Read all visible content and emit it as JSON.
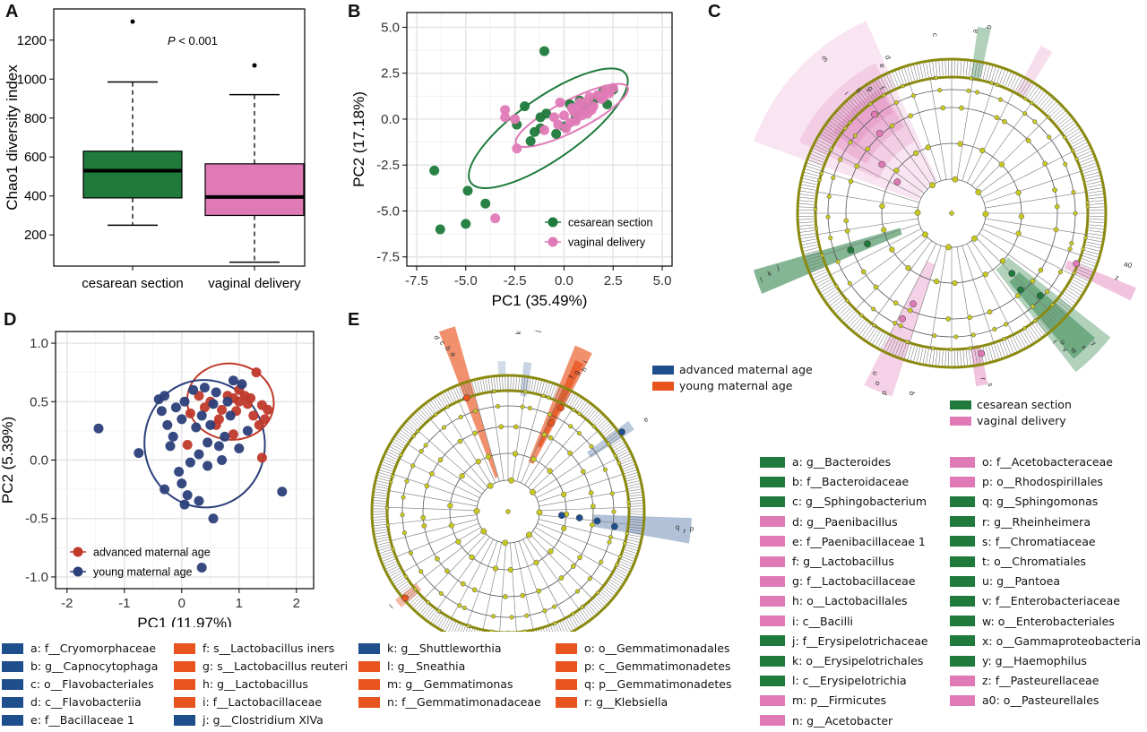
{
  "panels": {
    "A": "A",
    "B": "B",
    "C": "C",
    "D": "D",
    "E": "E"
  },
  "colors": {
    "cesarean": "#1f7a3c",
    "vaginal": "#e07ab7",
    "advanced": "#c0392b",
    "young": "#2b3f7a",
    "lefse_blue": "#1f4e8c",
    "lefse_orange": "#e8541e",
    "node": "#c8c820"
  },
  "chart_data": [
    {
      "id": "A",
      "type": "box",
      "ylabel": "Chao1 diversity index",
      "annotation": "P < 0.001",
      "categories": [
        "cesarean section",
        "vaginal delivery"
      ],
      "ylim": [
        40,
        1360
      ],
      "yticks": [
        200,
        400,
        600,
        800,
        1000,
        1200
      ],
      "boxes": [
        {
          "category": "cesarean section",
          "min": 250,
          "q1": 390,
          "median": 530,
          "q3": 630,
          "max": 985,
          "outliers": [
            1295
          ]
        },
        {
          "category": "vaginal delivery",
          "min": 60,
          "q1": 300,
          "median": 395,
          "q3": 565,
          "max": 920,
          "outliers": [
            1070
          ]
        }
      ]
    },
    {
      "id": "B",
      "type": "scatter",
      "xlabel": "PC1 (35.49%)",
      "ylabel": "PC2 (17.18%)",
      "xlim": [
        -8,
        5.5
      ],
      "ylim": [
        -8,
        5.8
      ],
      "xticks": [
        -7.5,
        -5.0,
        -2.5,
        0.0,
        2.5,
        5.0
      ],
      "yticks": [
        -7.5,
        -5.0,
        -2.5,
        0.0,
        2.5,
        5.0
      ],
      "legend_position": "bottom-right",
      "series": [
        {
          "name": "cesarean section",
          "points": [
            [
              -1.0,
              3.7
            ],
            [
              -6.6,
              -2.8
            ],
            [
              -6.3,
              -6.0
            ],
            [
              -5.0,
              -5.7
            ],
            [
              -4.9,
              -3.9
            ],
            [
              -4.0,
              -4.6
            ],
            [
              -2.0,
              0.7
            ],
            [
              -1.7,
              -1.2
            ],
            [
              -1.5,
              -0.7
            ],
            [
              -1.2,
              0.1
            ],
            [
              -0.9,
              0.3
            ],
            [
              -1.2,
              -0.5
            ],
            [
              0.3,
              0.8
            ],
            [
              0.0,
              -0.4
            ],
            [
              0.6,
              0.1
            ],
            [
              1.0,
              0.7
            ],
            [
              1.5,
              1.0
            ],
            [
              2.0,
              1.5
            ],
            [
              2.5,
              1.6
            ],
            [
              1.3,
              0.6
            ],
            [
              -0.4,
              -0.8
            ],
            [
              0.8,
              1.0
            ],
            [
              1.8,
              1.2
            ],
            [
              2.2,
              0.8
            ],
            [
              -2.4,
              -0.3
            ]
          ]
        },
        {
          "name": "vaginal delivery",
          "points": [
            [
              -3.5,
              -5.4
            ],
            [
              -3.0,
              0.1
            ],
            [
              -2.5,
              0.0
            ],
            [
              -2.4,
              -1.6
            ],
            [
              -3.0,
              0.5
            ],
            [
              -0.2,
              0.9
            ],
            [
              0.0,
              0.2
            ],
            [
              0.3,
              -0.2
            ],
            [
              0.5,
              0.4
            ],
            [
              0.7,
              0.6
            ],
            [
              0.9,
              0.2
            ],
            [
              1.1,
              0.9
            ],
            [
              1.3,
              1.2
            ],
            [
              1.5,
              0.7
            ],
            [
              1.7,
              1.3
            ],
            [
              1.9,
              1.1
            ],
            [
              2.1,
              1.6
            ],
            [
              2.3,
              1.4
            ],
            [
              2.5,
              1.7
            ],
            [
              0.1,
              -0.5
            ],
            [
              -0.3,
              -0.3
            ],
            [
              0.6,
              -0.1
            ],
            [
              1.0,
              0.4
            ],
            [
              1.4,
              0.5
            ],
            [
              0.4,
              0.6
            ],
            [
              -0.5,
              0.1
            ],
            [
              0.8,
              0.9
            ],
            [
              1.2,
              0.3
            ],
            [
              2.0,
              1.2
            ],
            [
              -1.0,
              -0.6
            ]
          ]
        }
      ],
      "ellipses": [
        {
          "series": "cesarean section",
          "cx": -0.8,
          "cy": -0.5,
          "rx": 5.6,
          "ry": 1.6,
          "angle": 35
        },
        {
          "series": "vaginal delivery",
          "cx": 0.4,
          "cy": 0.2,
          "rx": 3.7,
          "ry": 0.8,
          "angle": 27
        }
      ]
    },
    {
      "id": "D",
      "type": "scatter",
      "xlabel": "PC1 (11.97%)",
      "ylabel": "PC2 (5.39%)",
      "xlim": [
        -2.2,
        2.3
      ],
      "ylim": [
        -1.1,
        1.1
      ],
      "xticks": [
        -2,
        -1,
        0,
        1,
        2
      ],
      "yticks": [
        -1.0,
        -0.5,
        0.0,
        0.5,
        1.0
      ],
      "legend_position": "bottom-left",
      "series": [
        {
          "name": "advanced maternal age",
          "points": [
            [
              1.3,
              0.75
            ],
            [
              1.5,
              0.43
            ],
            [
              1.45,
              0.35
            ],
            [
              1.35,
              0.3
            ],
            [
              1.4,
              0.47
            ],
            [
              1.2,
              0.53
            ],
            [
              1.1,
              0.55
            ],
            [
              1.0,
              0.5
            ],
            [
              0.9,
              0.53
            ],
            [
              0.7,
              0.43
            ],
            [
              0.6,
              0.3
            ],
            [
              0.5,
              0.5
            ],
            [
              0.3,
              0.55
            ],
            [
              0.4,
              0.45
            ],
            [
              0.8,
              0.55
            ],
            [
              0.95,
              0.42
            ],
            [
              1.15,
              0.48
            ],
            [
              1.25,
              0.38
            ],
            [
              0.15,
              0.4
            ],
            [
              0.9,
              0.22
            ],
            [
              1.4,
              0.02
            ],
            [
              0.1,
              0.13
            ],
            [
              1.0,
              0.6
            ],
            [
              0.65,
              0.35
            ]
          ]
        },
        {
          "name": "young maternal age",
          "points": [
            [
              -1.45,
              0.27
            ],
            [
              -0.75,
              0.06
            ],
            [
              -0.4,
              0.52
            ],
            [
              -0.35,
              0.42
            ],
            [
              -0.3,
              0.55
            ],
            [
              -0.25,
              0.3
            ],
            [
              -0.15,
              0.2
            ],
            [
              -0.1,
              0.45
            ],
            [
              0.0,
              0.35
            ],
            [
              0.05,
              0.5
            ],
            [
              0.2,
              0.6
            ],
            [
              0.25,
              0.28
            ],
            [
              0.35,
              0.38
            ],
            [
              0.45,
              0.15
            ],
            [
              0.55,
              0.48
            ],
            [
              0.6,
              0.58
            ],
            [
              0.75,
              0.2
            ],
            [
              0.85,
              0.38
            ],
            [
              0.9,
              0.68
            ],
            [
              1.05,
              0.65
            ],
            [
              1.15,
              0.25
            ],
            [
              0.3,
              0.05
            ],
            [
              0.15,
              -0.02
            ],
            [
              -0.05,
              -0.1
            ],
            [
              0.45,
              -0.05
            ],
            [
              0.0,
              -0.2
            ],
            [
              0.1,
              -0.3
            ],
            [
              0.05,
              -0.38
            ],
            [
              -0.3,
              -0.25
            ],
            [
              0.55,
              -0.5
            ],
            [
              0.3,
              -0.35
            ],
            [
              1.75,
              -0.27
            ],
            [
              0.35,
              -0.92
            ],
            [
              0.7,
              0.0
            ],
            [
              0.5,
              0.3
            ],
            [
              -0.2,
              0.12
            ],
            [
              0.8,
              0.5
            ],
            [
              0.4,
              0.62
            ],
            [
              1.0,
              0.1
            ],
            [
              0.65,
              0.12
            ]
          ]
        }
      ],
      "ellipses": [
        {
          "series": "advanced maternal age",
          "cx": 0.85,
          "cy": 0.5,
          "rx": 0.88,
          "ry": 0.31,
          "angle": -8
        },
        {
          "series": "young maternal age",
          "cx": 0.4,
          "cy": 0.14,
          "rx": 1.22,
          "ry": 0.52,
          "angle": 8
        }
      ]
    }
  ],
  "C": {
    "legend": [
      {
        "label": "cesarean section",
        "color": "#1f7a3c"
      },
      {
        "label": "vaginal delivery",
        "color": "#e07ab7"
      }
    ],
    "taxa_col1": [
      {
        "label": "a: g__Bacteroides",
        "color": "#1f7a3c"
      },
      {
        "label": "b: f__Bacteroidaceae",
        "color": "#1f7a3c"
      },
      {
        "label": "c: g__Sphingobacterium",
        "color": "#1f7a3c"
      },
      {
        "label": "d: g__Paenibacillus",
        "color": "#e07ab7"
      },
      {
        "label": "e: f__Paenibacillaceae 1",
        "color": "#e07ab7"
      },
      {
        "label": "f: g__Lactobacillus",
        "color": "#e07ab7"
      },
      {
        "label": "g: f__Lactobacillaceae",
        "color": "#e07ab7"
      },
      {
        "label": "h: o__Lactobacillales",
        "color": "#e07ab7"
      },
      {
        "label": "i: c__Bacilli",
        "color": "#e07ab7"
      },
      {
        "label": "j: f__Erysipelotrichaceae",
        "color": "#1f7a3c"
      },
      {
        "label": "k: o__Erysipelotrichales",
        "color": "#1f7a3c"
      },
      {
        "label": "l: c__Erysipelotrichia",
        "color": "#1f7a3c"
      },
      {
        "label": "m: p__Firmicutes",
        "color": "#e07ab7"
      },
      {
        "label": "n: g__Acetobacter",
        "color": "#e07ab7"
      }
    ],
    "taxa_col2": [
      {
        "label": "o: f__Acetobacteraceae",
        "color": "#e07ab7"
      },
      {
        "label": "p: o__Rhodospirillales",
        "color": "#e07ab7"
      },
      {
        "label": "q: g__Sphingomonas",
        "color": "#1f7a3c"
      },
      {
        "label": "r: g__Rheinheimera",
        "color": "#1f7a3c"
      },
      {
        "label": "s: f__Chromatiaceae",
        "color": "#1f7a3c"
      },
      {
        "label": "t: o__Chromatiales",
        "color": "#1f7a3c"
      },
      {
        "label": "u: g__Pantoea",
        "color": "#1f7a3c"
      },
      {
        "label": "v: f__Enterobacteriaceae",
        "color": "#1f7a3c"
      },
      {
        "label": "w: o__Enterobacteriales",
        "color": "#1f7a3c"
      },
      {
        "label": "x: o__Gammaproteobacteria",
        "color": "#1f7a3c"
      },
      {
        "label": "y: g__Haemophilus",
        "color": "#1f7a3c"
      },
      {
        "label": "z: f__Pasteurellaceae",
        "color": "#e07ab7"
      },
      {
        "label": "a0: o__Pasteurellales",
        "color": "#e07ab7"
      }
    ],
    "sector_labels": [
      "m",
      "i",
      "h",
      "g",
      "f",
      "e",
      "d",
      "c",
      "b",
      "a",
      "l",
      "k",
      "j",
      "a0",
      "z",
      "y",
      "x",
      "w",
      "v",
      "u",
      "t",
      "s",
      "r",
      "q",
      "p",
      "o",
      "n"
    ]
  },
  "E": {
    "legend": [
      {
        "label": "advanced maternal age",
        "color": "#1f4e8c"
      },
      {
        "label": "young maternal age",
        "color": "#e8541e"
      }
    ],
    "taxa": [
      {
        "label": "a: f__Cryomorphaceae",
        "color": "#1f4e8c"
      },
      {
        "label": "b: g__Capnocytophaga",
        "color": "#1f4e8c"
      },
      {
        "label": "c: o__Flavobacteriales",
        "color": "#1f4e8c"
      },
      {
        "label": "d: c__Flavobacteriia",
        "color": "#1f4e8c"
      },
      {
        "label": "e: f__Bacillaceae 1",
        "color": "#1f4e8c"
      },
      {
        "label": "f: s__Lactobacillus iners",
        "color": "#e8541e"
      },
      {
        "label": "g: s__Lactobacillus reuteri",
        "color": "#e8541e"
      },
      {
        "label": "h: g__Lactobacillus",
        "color": "#e8541e"
      },
      {
        "label": "i: f__Lactobacillaceae",
        "color": "#e8541e"
      },
      {
        "label": "j: g__Clostridium XlVa",
        "color": "#1f4e8c"
      },
      {
        "label": "k: g__Shuttleworthia",
        "color": "#1f4e8c"
      },
      {
        "label": "l: g__Sneathia",
        "color": "#e8541e"
      },
      {
        "label": "m: g__Gemmatimonas",
        "color": "#e8541e"
      },
      {
        "label": "n: f__Gemmatimonadaceae",
        "color": "#e8541e"
      },
      {
        "label": "o: o__Gemmatimonadales",
        "color": "#e8541e"
      },
      {
        "label": "p: c__Gemmatimonadetes",
        "color": "#e8541e"
      },
      {
        "label": "q: p__Gemmatimonadetes",
        "color": "#e8541e"
      },
      {
        "label": "r: g__Klebsiella",
        "color": "#e8541e"
      }
    ],
    "sector_labels": [
      "d",
      "c",
      "b",
      "a",
      "k",
      "j",
      "i",
      "h",
      "g",
      "f",
      "e",
      "r",
      "q",
      "p",
      "o",
      "n",
      "m",
      "l"
    ]
  }
}
